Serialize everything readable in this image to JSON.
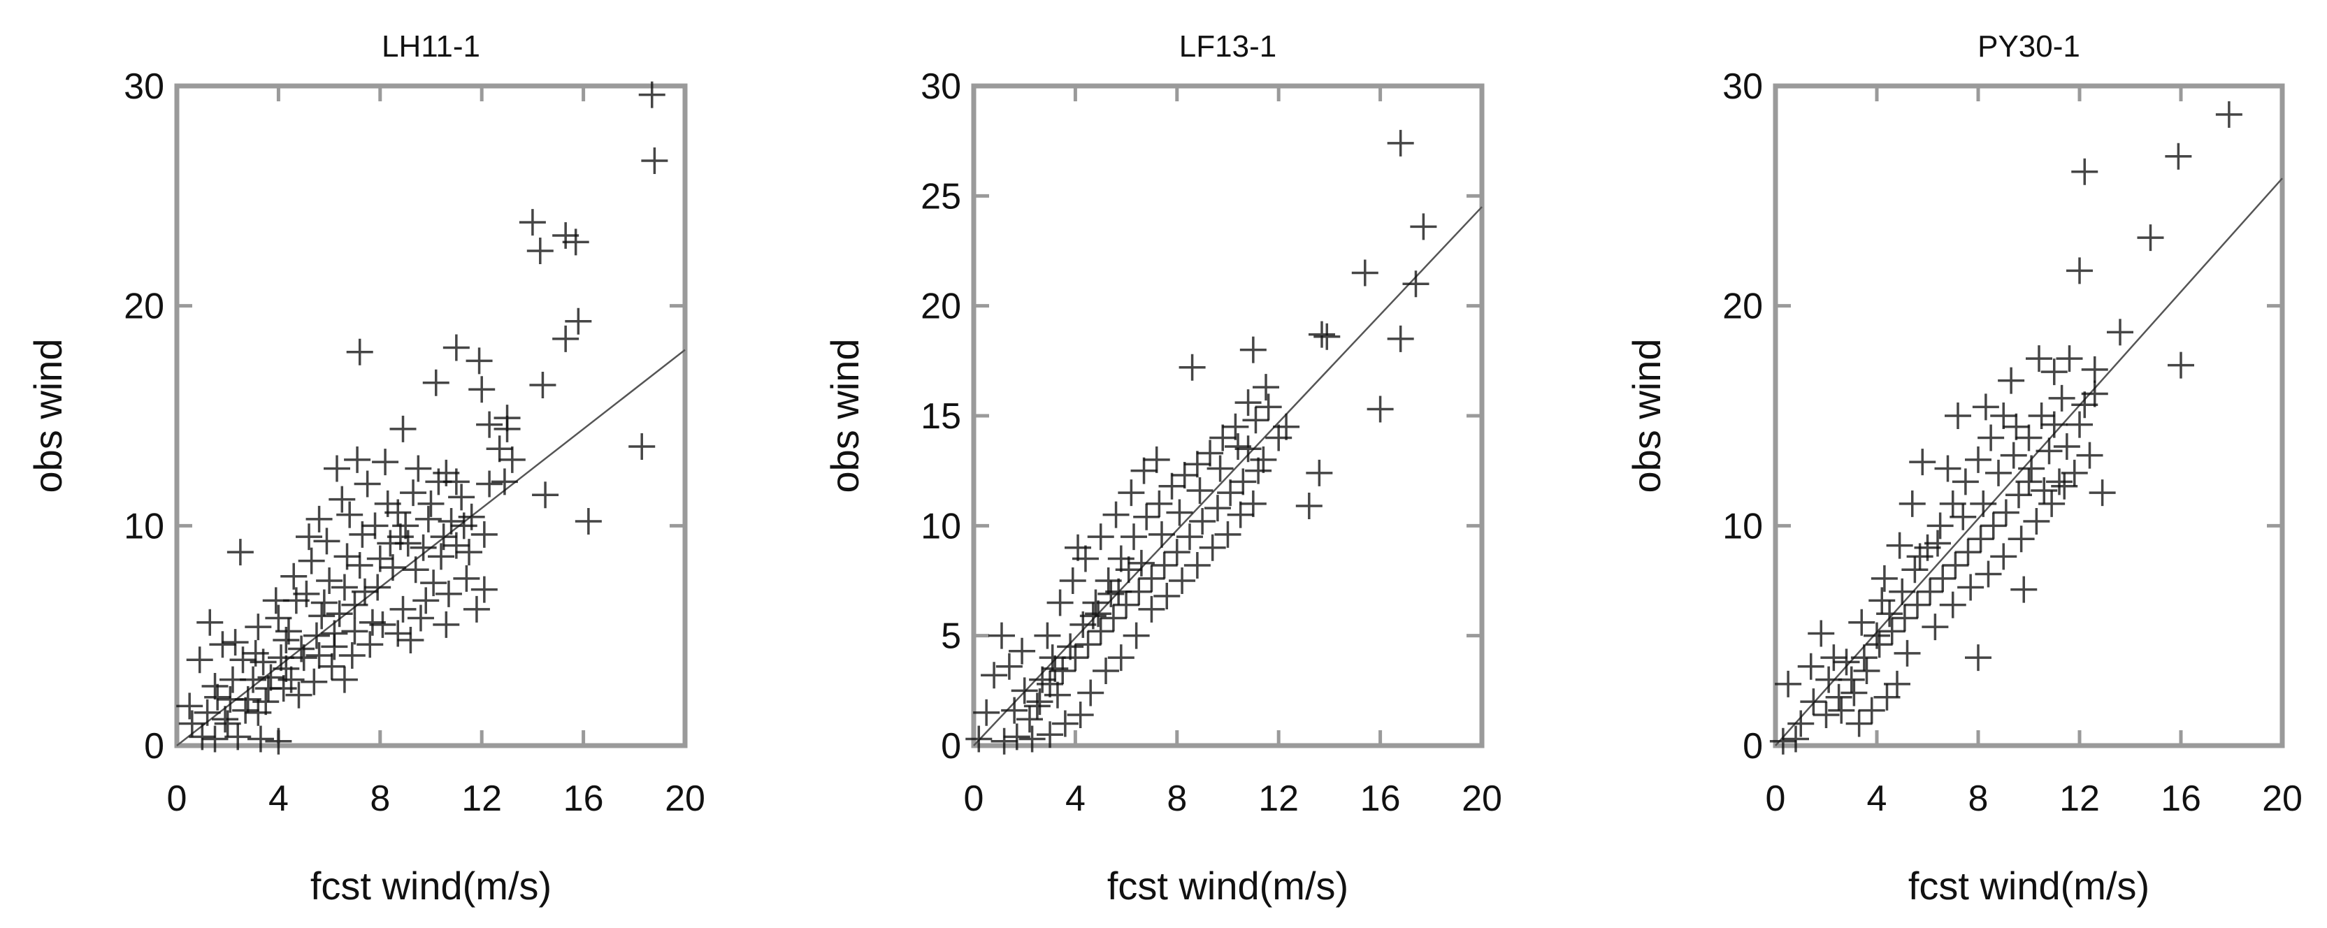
{
  "chart_data": [
    {
      "type": "scatter",
      "title": "LH11-1",
      "xlabel": "fcst wind(m/s)",
      "ylabel": "obs wind",
      "xlim": [
        0,
        20
      ],
      "ylim": [
        0,
        30
      ],
      "xticks": [
        0,
        4,
        8,
        12,
        16,
        20
      ],
      "yticks": [
        0,
        10,
        20,
        30
      ],
      "xtick_labels": [
        "0",
        "4",
        "8",
        "12",
        "16",
        "20"
      ],
      "ytick_labels": [
        "0",
        "10",
        "20",
        "30"
      ],
      "grid": false,
      "fit_line": {
        "x": [
          0,
          20
        ],
        "y": [
          0,
          18
        ]
      },
      "points": [
        [
          18.7,
          29.6
        ],
        [
          18.8,
          26.6
        ],
        [
          14.0,
          23.8
        ],
        [
          14.3,
          22.5
        ],
        [
          15.3,
          23.2
        ],
        [
          15.7,
          22.9
        ],
        [
          15.8,
          19.3
        ],
        [
          15.3,
          18.5
        ],
        [
          14.4,
          16.4
        ],
        [
          18.3,
          13.6
        ],
        [
          16.2,
          10.2
        ],
        [
          14.5,
          11.4
        ],
        [
          7.2,
          17.9
        ],
        [
          11.0,
          18.1
        ],
        [
          11.9,
          17.5
        ],
        [
          12.0,
          16.2
        ],
        [
          10.2,
          16.5
        ],
        [
          12.3,
          14.6
        ],
        [
          13.0,
          14.4
        ],
        [
          13.2,
          13.0
        ],
        [
          12.9,
          12.0
        ],
        [
          12.7,
          13.5
        ],
        [
          13.0,
          14.9
        ],
        [
          1.0,
          0.4
        ],
        [
          0.6,
          1.0
        ],
        [
          1.5,
          0.3
        ],
        [
          2.4,
          0.4
        ],
        [
          3.3,
          0.3
        ],
        [
          4.0,
          0.2
        ],
        [
          2.5,
          8.8
        ],
        [
          1.3,
          5.6
        ],
        [
          1.8,
          4.6
        ],
        [
          2.3,
          4.7
        ],
        [
          3.2,
          5.4
        ],
        [
          2.6,
          3.9
        ],
        [
          1.5,
          2.7
        ],
        [
          2.1,
          2.1
        ],
        [
          2.8,
          2.1
        ],
        [
          0.9,
          3.9
        ],
        [
          0.5,
          1.8
        ],
        [
          1.9,
          1.2
        ],
        [
          3.7,
          3.1
        ],
        [
          4.3,
          4.8
        ],
        [
          4.7,
          6.6
        ],
        [
          5.3,
          8.4
        ],
        [
          5.9,
          9.3
        ],
        [
          6.5,
          11.2
        ],
        [
          7.5,
          11.9
        ],
        [
          8.2,
          12.9
        ],
        [
          8.9,
          14.4
        ],
        [
          9.5,
          12.6
        ],
        [
          10.6,
          12.4
        ],
        [
          11.2,
          11.3
        ],
        [
          10.8,
          10.2
        ],
        [
          11.6,
          10.4
        ],
        [
          12.3,
          11.9
        ],
        [
          11.0,
          9.1
        ],
        [
          11.5,
          8.8
        ],
        [
          12.1,
          7.1
        ],
        [
          11.8,
          6.2
        ],
        [
          10.7,
          6.9
        ],
        [
          9.6,
          5.8
        ],
        [
          8.7,
          5.1
        ],
        [
          7.6,
          4.6
        ],
        [
          6.9,
          4.1
        ],
        [
          6.1,
          3.6
        ],
        [
          6.6,
          3.0
        ],
        [
          5.7,
          5.9
        ],
        [
          4.9,
          4.4
        ],
        [
          4.3,
          3.5
        ],
        [
          3.6,
          2.6
        ],
        [
          4.8,
          2.3
        ],
        [
          5.4,
          2.9
        ],
        [
          6.2,
          5.1
        ],
        [
          7.0,
          6.4
        ],
        [
          7.9,
          7.2
        ],
        [
          8.5,
          8.1
        ],
        [
          9.1,
          9.2
        ],
        [
          9.9,
          10.3
        ],
        [
          8.3,
          11.0
        ],
        [
          7.3,
          9.6
        ],
        [
          6.7,
          8.6
        ],
        [
          6.0,
          7.5
        ],
        [
          5.1,
          6.9
        ],
        [
          4.0,
          5.8
        ],
        [
          3.1,
          4.2
        ],
        [
          3.9,
          6.6
        ],
        [
          4.6,
          7.7
        ],
        [
          5.6,
          10.3
        ],
        [
          6.3,
          12.6
        ],
        [
          7.1,
          13.0
        ],
        [
          8.7,
          10.6
        ],
        [
          9.4,
          8.0
        ],
        [
          10.1,
          7.4
        ],
        [
          10.4,
          8.6
        ],
        [
          9.8,
          6.6
        ],
        [
          8.9,
          6.2
        ],
        [
          7.7,
          5.6
        ],
        [
          2.7,
          1.6
        ],
        [
          1.2,
          1.5
        ],
        [
          3.0,
          3.0
        ],
        [
          3.5,
          2.0
        ],
        [
          4.5,
          3.0
        ],
        [
          5.0,
          4.0
        ],
        [
          5.5,
          5.0
        ],
        [
          6.4,
          6.0
        ],
        [
          7.4,
          7.0
        ],
        [
          8.0,
          8.5
        ],
        [
          8.8,
          9.5
        ],
        [
          9.3,
          11.5
        ],
        [
          10.0,
          11.0
        ],
        [
          10.5,
          9.5
        ],
        [
          11.3,
          10.0
        ],
        [
          7.8,
          10.0
        ],
        [
          6.8,
          10.5
        ],
        [
          5.2,
          9.5
        ],
        [
          4.1,
          4.0
        ],
        [
          2.2,
          3.0
        ],
        [
          1.6,
          2.2
        ],
        [
          3.4,
          3.8
        ],
        [
          4.4,
          5.2
        ],
        [
          5.8,
          6.5
        ],
        [
          6.6,
          7.2
        ],
        [
          7.2,
          8.2
        ],
        [
          8.4,
          9.2
        ],
        [
          9.0,
          10.0
        ],
        [
          9.7,
          9.0
        ],
        [
          10.3,
          12.0
        ],
        [
          11.0,
          12.0
        ],
        [
          12.1,
          9.6
        ],
        [
          11.4,
          7.6
        ],
        [
          10.6,
          5.5
        ],
        [
          9.2,
          4.8
        ],
        [
          8.1,
          5.5
        ],
        [
          7.0,
          5.2
        ],
        [
          6.2,
          4.5
        ],
        [
          5.6,
          4.1
        ],
        [
          4.2,
          2.6
        ],
        [
          3.2,
          1.5
        ],
        [
          2.0,
          1.0
        ]
      ]
    },
    {
      "type": "scatter",
      "title": "LF13-1",
      "xlabel": "fcst wind(m/s)",
      "ylabel": "obs wind",
      "xlim": [
        0,
        20
      ],
      "ylim": [
        0,
        30
      ],
      "xticks": [
        0,
        4,
        8,
        12,
        16,
        20
      ],
      "yticks": [
        0,
        5,
        10,
        15,
        20,
        25,
        30
      ],
      "xtick_labels": [
        "0",
        "4",
        "8",
        "12",
        "16",
        "20"
      ],
      "ytick_labels": [
        "0",
        "5",
        "10",
        "15",
        "20",
        "25",
        "30"
      ],
      "grid": false,
      "fit_line": {
        "x": [
          0,
          20
        ],
        "y": [
          0,
          24.5
        ]
      },
      "points": [
        [
          16.8,
          27.4
        ],
        [
          17.7,
          23.6
        ],
        [
          17.4,
          21.0
        ],
        [
          15.4,
          21.5
        ],
        [
          16.8,
          18.5
        ],
        [
          16.0,
          15.3
        ],
        [
          13.7,
          18.7
        ],
        [
          13.9,
          18.6
        ],
        [
          13.6,
          12.4
        ],
        [
          13.2,
          10.9
        ],
        [
          12.0,
          14.0
        ],
        [
          12.3,
          14.5
        ],
        [
          11.0,
          18.0
        ],
        [
          11.5,
          16.3
        ],
        [
          8.6,
          17.2
        ],
        [
          10.8,
          15.6
        ],
        [
          0.8,
          3.2
        ],
        [
          0.5,
          1.5
        ],
        [
          0.2,
          0.3
        ],
        [
          1.2,
          0.2
        ],
        [
          1.7,
          0.4
        ],
        [
          2.3,
          0.3
        ],
        [
          3.0,
          0.5
        ],
        [
          1.1,
          5.0
        ],
        [
          1.9,
          4.3
        ],
        [
          1.4,
          3.6
        ],
        [
          2.0,
          2.5
        ],
        [
          2.6,
          2.0
        ],
        [
          3.2,
          3.5
        ],
        [
          3.8,
          4.5
        ],
        [
          4.3,
          5.5
        ],
        [
          4.8,
          6.5
        ],
        [
          5.3,
          7.5
        ],
        [
          5.8,
          8.5
        ],
        [
          6.3,
          9.5
        ],
        [
          6.8,
          10.4
        ],
        [
          7.3,
          11.0
        ],
        [
          7.8,
          11.8
        ],
        [
          8.3,
          12.3
        ],
        [
          8.8,
          12.8
        ],
        [
          9.3,
          13.3
        ],
        [
          9.8,
          14.0
        ],
        [
          10.3,
          14.5
        ],
        [
          10.8,
          13.5
        ],
        [
          11.2,
          12.5
        ],
        [
          10.6,
          12.0
        ],
        [
          10.1,
          11.5
        ],
        [
          9.6,
          10.8
        ],
        [
          9.0,
          10.2
        ],
        [
          8.5,
          9.5
        ],
        [
          8.0,
          8.8
        ],
        [
          7.5,
          8.2
        ],
        [
          7.0,
          7.6
        ],
        [
          6.5,
          7.0
        ],
        [
          6.0,
          6.4
        ],
        [
          5.5,
          5.8
        ],
        [
          5.0,
          5.2
        ],
        [
          4.5,
          4.6
        ],
        [
          4.0,
          4.0
        ],
        [
          3.5,
          3.4
        ],
        [
          3.0,
          2.8
        ],
        [
          2.5,
          1.8
        ],
        [
          2.9,
          5.0
        ],
        [
          3.4,
          6.5
        ],
        [
          3.9,
          7.5
        ],
        [
          4.4,
          8.5
        ],
        [
          4.1,
          9.0
        ],
        [
          5.0,
          9.5
        ],
        [
          5.6,
          10.5
        ],
        [
          6.2,
          11.5
        ],
        [
          6.7,
          12.5
        ],
        [
          7.2,
          13.0
        ],
        [
          4.6,
          2.4
        ],
        [
          5.2,
          3.4
        ],
        [
          5.8,
          4.0
        ],
        [
          6.4,
          5.0
        ],
        [
          7.0,
          6.2
        ],
        [
          7.6,
          6.8
        ],
        [
          8.2,
          7.5
        ],
        [
          8.8,
          8.2
        ],
        [
          9.4,
          9.0
        ],
        [
          10.0,
          9.6
        ],
        [
          10.5,
          10.5
        ],
        [
          11.0,
          11.0
        ],
        [
          11.4,
          13.0
        ],
        [
          4.2,
          1.4
        ],
        [
          3.6,
          1.0
        ],
        [
          2.2,
          1.2
        ],
        [
          1.6,
          1.6
        ],
        [
          3.1,
          4.0
        ],
        [
          4.9,
          6.0
        ],
        [
          5.7,
          7.0
        ],
        [
          6.6,
          8.3
        ],
        [
          7.4,
          9.6
        ],
        [
          8.1,
          10.6
        ],
        [
          8.9,
          11.6
        ],
        [
          9.7,
          12.6
        ],
        [
          10.4,
          13.6
        ],
        [
          11.1,
          14.8
        ],
        [
          11.6,
          15.4
        ],
        [
          6.1,
          8.0
        ],
        [
          5.4,
          6.9
        ],
        [
          4.7,
          5.9
        ],
        [
          3.3,
          2.3
        ],
        [
          2.7,
          3.0
        ]
      ]
    },
    {
      "type": "scatter",
      "title": "PY30-1",
      "xlabel": "fcst wind(m/s)",
      "ylabel": "obs wind",
      "xlim": [
        0,
        20
      ],
      "ylim": [
        0,
        30
      ],
      "xticks": [
        0,
        4,
        8,
        12,
        16,
        20
      ],
      "yticks": [
        0,
        10,
        20,
        30
      ],
      "xtick_labels": [
        "0",
        "4",
        "8",
        "12",
        "16",
        "20"
      ],
      "ytick_labels": [
        "0",
        "10",
        "20",
        "30"
      ],
      "grid": false,
      "fit_line": {
        "x": [
          0,
          20
        ],
        "y": [
          0,
          25.8
        ]
      },
      "points": [
        [
          17.9,
          28.7
        ],
        [
          15.9,
          26.8
        ],
        [
          12.2,
          26.1
        ],
        [
          14.8,
          23.1
        ],
        [
          12.0,
          21.6
        ],
        [
          16.0,
          17.3
        ],
        [
          12.9,
          11.5
        ],
        [
          13.6,
          18.8
        ],
        [
          12.6,
          17.1
        ],
        [
          11.6,
          17.6
        ],
        [
          11.0,
          17.0
        ],
        [
          9.8,
          7.1
        ],
        [
          8.0,
          4.0
        ],
        [
          0.3,
          0.2
        ],
        [
          0.8,
          0.3
        ],
        [
          0.5,
          2.8
        ],
        [
          1.0,
          1.0
        ],
        [
          1.5,
          2.0
        ],
        [
          2.0,
          1.4
        ],
        [
          2.5,
          2.2
        ],
        [
          1.8,
          5.1
        ],
        [
          2.3,
          4.0
        ],
        [
          3.0,
          3.0
        ],
        [
          3.5,
          4.0
        ],
        [
          4.0,
          5.0
        ],
        [
          4.5,
          6.0
        ],
        [
          5.0,
          7.0
        ],
        [
          5.5,
          8.0
        ],
        [
          6.0,
          9.0
        ],
        [
          6.5,
          10.0
        ],
        [
          7.0,
          11.0
        ],
        [
          7.5,
          12.0
        ],
        [
          8.0,
          13.0
        ],
        [
          8.5,
          14.0
        ],
        [
          9.0,
          15.0
        ],
        [
          9.5,
          14.5
        ],
        [
          10.0,
          14.0
        ],
        [
          10.5,
          15.0
        ],
        [
          11.0,
          14.6
        ],
        [
          11.5,
          13.6
        ],
        [
          12.0,
          14.6
        ],
        [
          12.4,
          13.2
        ],
        [
          11.8,
          12.4
        ],
        [
          11.2,
          12.0
        ],
        [
          10.6,
          11.6
        ],
        [
          10.1,
          12.6
        ],
        [
          9.6,
          11.4
        ],
        [
          9.1,
          10.6
        ],
        [
          8.6,
          10.0
        ],
        [
          8.1,
          9.4
        ],
        [
          7.6,
          8.8
        ],
        [
          7.1,
          8.2
        ],
        [
          6.6,
          7.6
        ],
        [
          6.1,
          7.0
        ],
        [
          5.6,
          6.4
        ],
        [
          5.1,
          5.8
        ],
        [
          4.6,
          5.2
        ],
        [
          4.1,
          4.6
        ],
        [
          3.6,
          3.4
        ],
        [
          3.1,
          2.4
        ],
        [
          2.6,
          1.6
        ],
        [
          2.1,
          3.0
        ],
        [
          4.8,
          2.8
        ],
        [
          5.2,
          4.2
        ],
        [
          4.3,
          7.6
        ],
        [
          4.9,
          9.1
        ],
        [
          5.4,
          11.0
        ],
        [
          5.8,
          12.9
        ],
        [
          6.8,
          12.6
        ],
        [
          7.2,
          15.0
        ],
        [
          8.3,
          15.4
        ],
        [
          9.3,
          16.6
        ],
        [
          10.4,
          17.6
        ],
        [
          6.3,
          5.4
        ],
        [
          7.0,
          6.4
        ],
        [
          7.7,
          7.2
        ],
        [
          8.4,
          7.8
        ],
        [
          9.0,
          8.6
        ],
        [
          9.7,
          9.4
        ],
        [
          10.3,
          10.2
        ],
        [
          10.9,
          11.0
        ],
        [
          11.4,
          11.8
        ],
        [
          12.6,
          16.0
        ],
        [
          6.4,
          9.2
        ],
        [
          5.7,
          8.6
        ],
        [
          4.4,
          2.2
        ],
        [
          3.8,
          1.6
        ],
        [
          3.3,
          1.0
        ],
        [
          2.8,
          3.8
        ],
        [
          1.4,
          3.6
        ],
        [
          3.4,
          5.6
        ],
        [
          4.2,
          6.6
        ],
        [
          7.4,
          10.4
        ],
        [
          8.8,
          12.4
        ],
        [
          9.4,
          13.2
        ],
        [
          10.8,
          13.4
        ],
        [
          11.3,
          15.8
        ],
        [
          12.2,
          15.5
        ],
        [
          10.0,
          12.0
        ],
        [
          8.2,
          11.0
        ]
      ]
    }
  ]
}
